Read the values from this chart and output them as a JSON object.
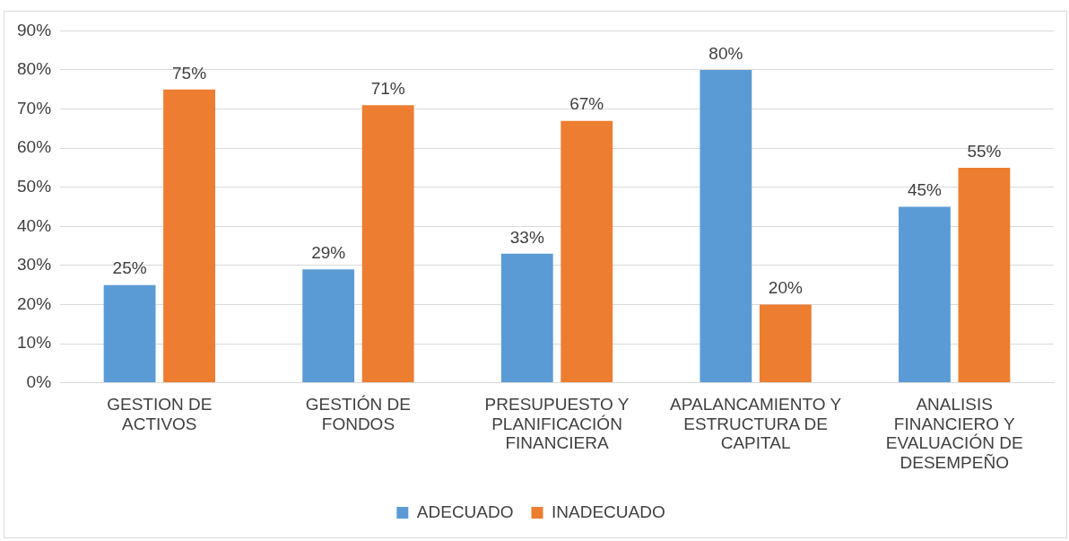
{
  "chart_data": {
    "type": "bar",
    "categories": [
      "GESTION DE ACTIVOS",
      "GESTIÓN DE FONDOS",
      "PRESUPUESTO Y PLANIFICACIÓN FINANCIERA",
      "APALANCAMIENTO Y ESTRUCTURA DE CAPITAL",
      "ANALISIS FINANCIERO Y EVALUACIÓN DE DESEMPEÑO"
    ],
    "series": [
      {
        "name": "ADECUADO",
        "color": "#5b9bd5",
        "values": [
          25,
          29,
          33,
          80,
          45
        ],
        "value_labels": [
          "25%",
          "29%",
          "33%",
          "80%",
          "45%"
        ]
      },
      {
        "name": "INADECUADO",
        "color": "#ed7d31",
        "values": [
          75,
          71,
          67,
          20,
          55
        ],
        "value_labels": [
          "75%",
          "71%",
          "67%",
          "20%",
          "55%"
        ]
      }
    ],
    "ylim": [
      0,
      90
    ],
    "yticks": [
      {
        "value": 0,
        "label": "0%"
      },
      {
        "value": 10,
        "label": "10%"
      },
      {
        "value": 20,
        "label": "20%"
      },
      {
        "value": 30,
        "label": "30%"
      },
      {
        "value": 40,
        "label": "40%"
      },
      {
        "value": 50,
        "label": "50%"
      },
      {
        "value": 60,
        "label": "60%"
      },
      {
        "value": 70,
        "label": "70%"
      },
      {
        "value": 80,
        "label": "80%"
      },
      {
        "value": 90,
        "label": "90%"
      }
    ],
    "grid": "y",
    "legend": "bottom"
  }
}
